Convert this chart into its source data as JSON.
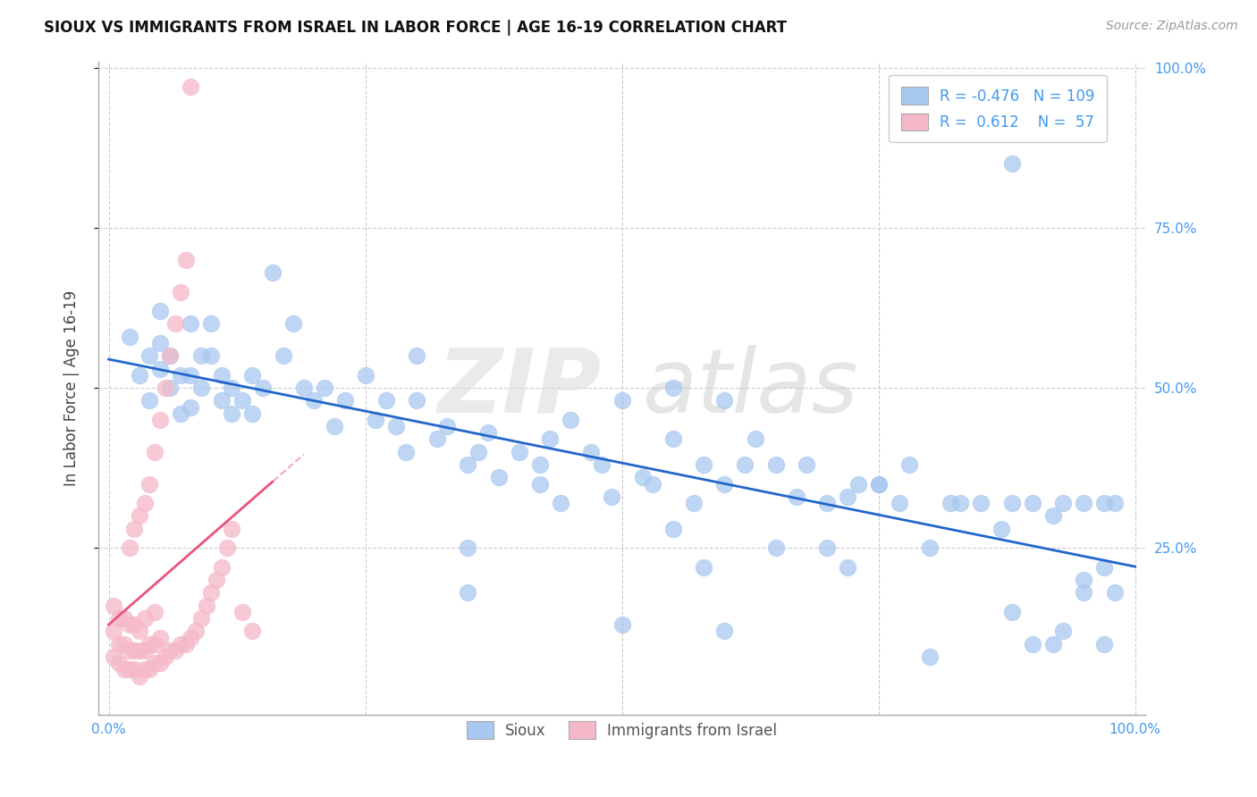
{
  "title": "SIOUX VS IMMIGRANTS FROM ISRAEL IN LABOR FORCE | AGE 16-19 CORRELATION CHART",
  "source": "Source: ZipAtlas.com",
  "ylabel": "In Labor Force | Age 16-19",
  "legend_blue_r": "-0.476",
  "legend_blue_n": "109",
  "legend_pink_r": "0.612",
  "legend_pink_n": "57",
  "legend_label_blue": "Sioux",
  "legend_label_pink": "Immigrants from Israel",
  "blue_color": "#A8C8F0",
  "pink_color": "#F5B8C8",
  "trend_blue_color": "#2266CC",
  "trend_pink_color": "#E8547A",
  "watermark_zip_color": "#D8D8D8",
  "watermark_atlas_color": "#C8C8C8",
  "blue_scatter_x": [
    0.02,
    0.03,
    0.04,
    0.04,
    0.05,
    0.05,
    0.05,
    0.06,
    0.06,
    0.07,
    0.07,
    0.08,
    0.08,
    0.08,
    0.09,
    0.09,
    0.1,
    0.1,
    0.11,
    0.11,
    0.12,
    0.12,
    0.13,
    0.14,
    0.14,
    0.15,
    0.16,
    0.17,
    0.18,
    0.19,
    0.2,
    0.21,
    0.22,
    0.23,
    0.25,
    0.26,
    0.27,
    0.28,
    0.29,
    0.3,
    0.32,
    0.33,
    0.35,
    0.36,
    0.37,
    0.38,
    0.4,
    0.42,
    0.43,
    0.44,
    0.45,
    0.47,
    0.48,
    0.49,
    0.5,
    0.52,
    0.53,
    0.55,
    0.55,
    0.57,
    0.58,
    0.58,
    0.6,
    0.6,
    0.62,
    0.63,
    0.65,
    0.65,
    0.67,
    0.68,
    0.7,
    0.72,
    0.73,
    0.75,
    0.77,
    0.78,
    0.8,
    0.82,
    0.83,
    0.85,
    0.87,
    0.88,
    0.88,
    0.9,
    0.9,
    0.92,
    0.93,
    0.93,
    0.95,
    0.95,
    0.97,
    0.97,
    0.98,
    0.98,
    0.3,
    0.35,
    0.35,
    0.42,
    0.5,
    0.55,
    0.6,
    0.7,
    0.72,
    0.75,
    0.8,
    0.88,
    0.92,
    0.95,
    0.97
  ],
  "blue_scatter_y": [
    0.58,
    0.52,
    0.48,
    0.55,
    0.53,
    0.57,
    0.62,
    0.5,
    0.55,
    0.46,
    0.52,
    0.47,
    0.52,
    0.6,
    0.5,
    0.55,
    0.55,
    0.6,
    0.48,
    0.52,
    0.46,
    0.5,
    0.48,
    0.46,
    0.52,
    0.5,
    0.68,
    0.55,
    0.6,
    0.5,
    0.48,
    0.5,
    0.44,
    0.48,
    0.52,
    0.45,
    0.48,
    0.44,
    0.4,
    0.48,
    0.42,
    0.44,
    0.38,
    0.4,
    0.43,
    0.36,
    0.4,
    0.38,
    0.42,
    0.32,
    0.45,
    0.4,
    0.38,
    0.33,
    0.48,
    0.36,
    0.35,
    0.42,
    0.28,
    0.32,
    0.38,
    0.22,
    0.35,
    0.48,
    0.38,
    0.42,
    0.25,
    0.38,
    0.33,
    0.38,
    0.32,
    0.33,
    0.35,
    0.35,
    0.32,
    0.38,
    0.25,
    0.32,
    0.32,
    0.32,
    0.28,
    0.32,
    0.15,
    0.32,
    0.1,
    0.3,
    0.32,
    0.12,
    0.32,
    0.18,
    0.32,
    0.22,
    0.32,
    0.18,
    0.55,
    0.25,
    0.18,
    0.35,
    0.13,
    0.5,
    0.12,
    0.25,
    0.22,
    0.35,
    0.08,
    0.85,
    0.1,
    0.2,
    0.1
  ],
  "pink_scatter_x": [
    0.005,
    0.005,
    0.005,
    0.01,
    0.01,
    0.01,
    0.015,
    0.015,
    0.015,
    0.02,
    0.02,
    0.02,
    0.02,
    0.025,
    0.025,
    0.025,
    0.025,
    0.03,
    0.03,
    0.03,
    0.03,
    0.035,
    0.035,
    0.035,
    0.035,
    0.04,
    0.04,
    0.04,
    0.045,
    0.045,
    0.045,
    0.045,
    0.05,
    0.05,
    0.05,
    0.055,
    0.055,
    0.06,
    0.06,
    0.065,
    0.065,
    0.07,
    0.07,
    0.075,
    0.075,
    0.08,
    0.08,
    0.085,
    0.09,
    0.095,
    0.1,
    0.105,
    0.11,
    0.115,
    0.12,
    0.13,
    0.14
  ],
  "pink_scatter_y": [
    0.08,
    0.12,
    0.16,
    0.07,
    0.1,
    0.14,
    0.06,
    0.1,
    0.14,
    0.06,
    0.09,
    0.13,
    0.25,
    0.06,
    0.09,
    0.13,
    0.28,
    0.05,
    0.09,
    0.12,
    0.3,
    0.06,
    0.09,
    0.14,
    0.32,
    0.06,
    0.1,
    0.35,
    0.07,
    0.1,
    0.15,
    0.4,
    0.07,
    0.11,
    0.45,
    0.08,
    0.5,
    0.09,
    0.55,
    0.09,
    0.6,
    0.1,
    0.65,
    0.1,
    0.7,
    0.11,
    0.97,
    0.12,
    0.14,
    0.16,
    0.18,
    0.2,
    0.22,
    0.25,
    0.28,
    0.15,
    0.12
  ]
}
